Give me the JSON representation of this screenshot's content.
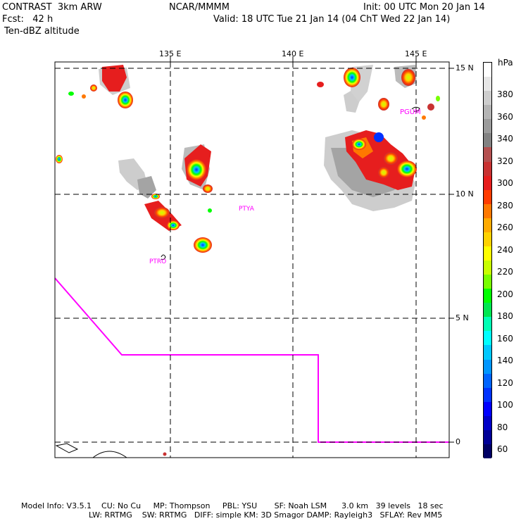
{
  "header": {
    "model": "CONTRAST  3km ARW",
    "org": "NCAR/MMMM",
    "init": "Init: 00 UTC Mon 20 Jan 14",
    "fcst": "Fcst:   42 h",
    "valid": "Valid: 18 UTC Tue 21 Jan 14 (04 ChT Wed 22 Jan 14)",
    "field": "Ten-dBZ altitude"
  },
  "axes": {
    "lon_labels": [
      "135 E",
      "140 E",
      "145 E"
    ],
    "lat_labels": [
      "15 N",
      "10 N",
      "5 N",
      "0"
    ]
  },
  "stations": [
    "PGUM",
    "PTYA",
    "PTRO"
  ],
  "colorbar": {
    "unit": "hPa",
    "labels": [
      "380",
      "360",
      "340",
      "320",
      "300",
      "280",
      "260",
      "240",
      "220",
      "200",
      "180",
      "160",
      "140",
      "120",
      "100",
      "80",
      "60"
    ],
    "colors": [
      "#ffffff",
      "#e6e6e6",
      "#cdcdcd",
      "#b4b4b4",
      "#9b9b9b",
      "#828282",
      "#b45050",
      "#c83232",
      "#e61e1e",
      "#ff3c00",
      "#ff7800",
      "#ffaa00",
      "#ffd200",
      "#ffff00",
      "#c8ff00",
      "#78ff00",
      "#00ff00",
      "#00e650",
      "#00ffb4",
      "#00ffff",
      "#00c8ff",
      "#0096ff",
      "#0064ff",
      "#0032ff",
      "#0000ff",
      "#0000c8",
      "#000096",
      "#000064"
    ]
  },
  "footer": {
    "line1": "Model Info: V3.5.1    CU: No Cu     MP: Thompson     PBL: YSU       SF: Noah LSM      3.0 km   39 levels   18 sec",
    "line2": "LW: RRTMG    SW: RRTMG   DIFF: simple KM: 3D Smagor DAMP: Rayleigh3   SFLAY: Rev MM5"
  }
}
